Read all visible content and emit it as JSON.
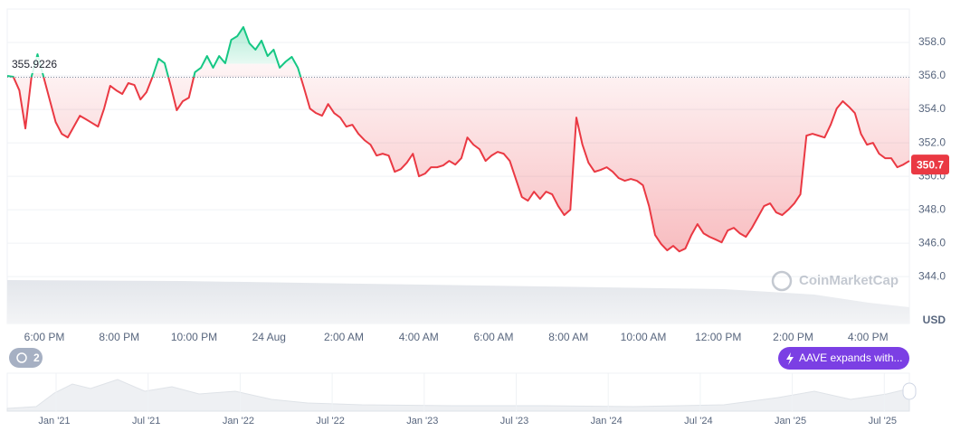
{
  "chart_data": {
    "type": "line",
    "baseline": 355.9226,
    "current_price": 350.7,
    "currency": "USD",
    "up_color": "#16c784",
    "down_color": "#ea3943",
    "grid": true,
    "ylim": [
      341.2,
      360
    ],
    "yticks": [
      {
        "value": 344,
        "label": "344.0"
      },
      {
        "value": 346,
        "label": "346.0"
      },
      {
        "value": 348,
        "label": "348.0"
      },
      {
        "value": 350,
        "label": "350.0"
      },
      {
        "value": 352,
        "label": "352.0"
      },
      {
        "value": 354,
        "label": "354.0"
      },
      {
        "value": 356,
        "label": "356.0"
      },
      {
        "value": 358,
        "label": "358.0"
      }
    ],
    "xticks": [
      "6:00 PM",
      "8:00 PM",
      "10:00 PM",
      "24 Aug",
      "2:00 AM",
      "4:00 AM",
      "6:00 AM",
      "8:00 AM",
      "10:00 AM",
      "12:00 PM",
      "2:00 PM",
      "4:00 PM"
    ],
    "series": [
      {
        "name": "AAVE",
        "values": [
          356.0,
          355.95,
          355.14,
          352.86,
          355.95,
          357.3,
          355.95,
          354.59,
          353.24,
          352.54,
          352.32,
          352.97,
          353.62,
          353.41,
          353.19,
          352.97,
          354.05,
          355.41,
          355.14,
          354.92,
          355.57,
          355.46,
          354.59,
          355.03,
          355.95,
          357.03,
          356.76,
          355.41,
          353.95,
          354.49,
          354.7,
          356.22,
          356.49,
          357.19,
          356.49,
          357.19,
          356.76,
          358.16,
          358.38,
          358.92,
          357.95,
          357.57,
          358.11,
          357.19,
          357.57,
          356.49,
          356.86,
          357.14,
          356.49,
          355.3,
          354.05,
          353.78,
          353.62,
          354.32,
          353.78,
          353.51,
          352.97,
          353.08,
          352.54,
          352.16,
          351.89,
          351.24,
          351.35,
          351.24,
          350.27,
          350.43,
          350.81,
          351.35,
          350.0,
          350.16,
          350.54,
          350.54,
          350.65,
          350.92,
          350.7,
          351.08,
          352.32,
          351.89,
          351.62,
          350.92,
          351.24,
          351.46,
          351.35,
          350.92,
          349.84,
          348.76,
          348.54,
          349.08,
          348.65,
          349.08,
          348.92,
          348.22,
          347.68,
          348.0,
          353.51,
          351.89,
          350.81,
          350.27,
          350.38,
          350.54,
          350.27,
          349.89,
          349.73,
          349.84,
          349.73,
          349.46,
          348.22,
          346.49,
          345.95,
          345.57,
          345.84,
          345.51,
          345.68,
          346.49,
          347.14,
          346.59,
          346.38,
          346.22,
          346.05,
          346.76,
          346.92,
          346.59,
          346.38,
          346.92,
          347.57,
          348.22,
          348.38,
          347.84,
          347.68,
          348.0,
          348.38,
          348.92,
          352.43,
          352.54,
          352.43,
          352.32,
          353.08,
          354.05,
          354.49,
          354.16,
          353.78,
          352.54,
          351.89,
          352.0,
          351.35,
          351.08,
          351.08,
          350.54,
          350.7,
          350.92
        ]
      }
    ]
  },
  "ui": {
    "watermark": "CoinMarketCap",
    "history_badge": "2",
    "news_pill": "AAVE expands with...",
    "navigator_labels": [
      "Jan '21",
      "Jul '21",
      "Jan '22",
      "Jul '22",
      "Jan '23",
      "Jul '23",
      "Jan '24",
      "Jul '24",
      "Jan '25",
      "Jul '25"
    ]
  }
}
